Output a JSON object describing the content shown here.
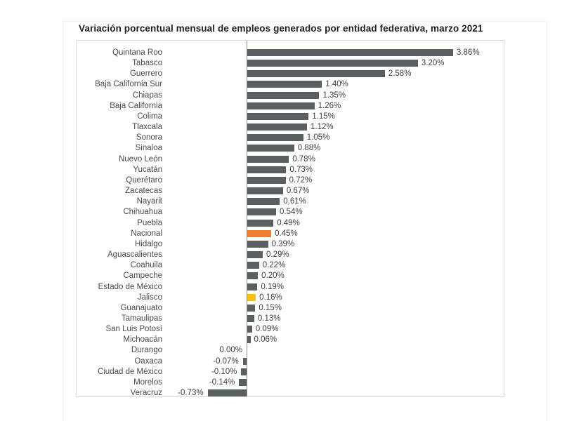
{
  "chart_data": {
    "type": "bar",
    "orientation": "horizontal",
    "title": "Variación porcentual mensual de empleos generados por entidad federativa, marzo 2021",
    "xlabel": "",
    "ylabel": "",
    "legend": false,
    "grid": false,
    "value_suffix": "%",
    "xlim": [
      -1.6,
      4.85
    ],
    "categories": [
      "Quintana Roo",
      "Tabasco",
      "Guerrero",
      "Baja California Sur",
      "Chiapas",
      "Baja California",
      "Colima",
      "Tlaxcala",
      "Sonora",
      "Sinaloa",
      "Nuevo León",
      "Yucatán",
      "Querétaro",
      "Zacatecas",
      "Nayarit",
      "Chihuahua",
      "Puebla",
      "Nacional",
      "Hidalgo",
      "Aguascalientes",
      "Coahuila",
      "Campeche",
      "Estado de México",
      "Jalisco",
      "Guanajuato",
      "Tamaulipas",
      "San Luis Potosí",
      "Michoacán",
      "Durango",
      "Oaxaca",
      "Ciudad de México",
      "Morelos",
      "Veracruz"
    ],
    "values": [
      3.86,
      3.2,
      2.58,
      1.4,
      1.35,
      1.26,
      1.15,
      1.12,
      1.05,
      0.88,
      0.78,
      0.73,
      0.72,
      0.67,
      0.61,
      0.54,
      0.49,
      0.45,
      0.39,
      0.29,
      0.22,
      0.2,
      0.19,
      0.16,
      0.15,
      0.13,
      0.09,
      0.06,
      0.0,
      -0.07,
      -0.1,
      -0.14,
      -0.73
    ],
    "value_labels": [
      "3.86%",
      "3.20%",
      "2.58%",
      "1.40%",
      "1.35%",
      "1.26%",
      "1.15%",
      "1.12%",
      "1.05%",
      "0.88%",
      "0.78%",
      "0.73%",
      "0.72%",
      "0.67%",
      "0.61%",
      "0.54%",
      "0.49%",
      "0.45%",
      "0.39%",
      "0.29%",
      "0.22%",
      "0.20%",
      "0.19%",
      "0.16%",
      "0.15%",
      "0.13%",
      "0.09%",
      "0.06%",
      "0.00%",
      "-0.07%",
      "-0.10%",
      "-0.14%",
      "-0.73%"
    ],
    "highlights": [
      {
        "category": "Nacional",
        "color": "#ED7D31"
      },
      {
        "category": "Jalisco",
        "color": "#FBC110"
      }
    ],
    "colors": {
      "bar_default": "#5A5F62",
      "title_text": "#1F1F1F",
      "label_text": "#4A4A4A",
      "frame_border": "#D9D9D9",
      "axis_line": "#8C8C8C"
    }
  }
}
